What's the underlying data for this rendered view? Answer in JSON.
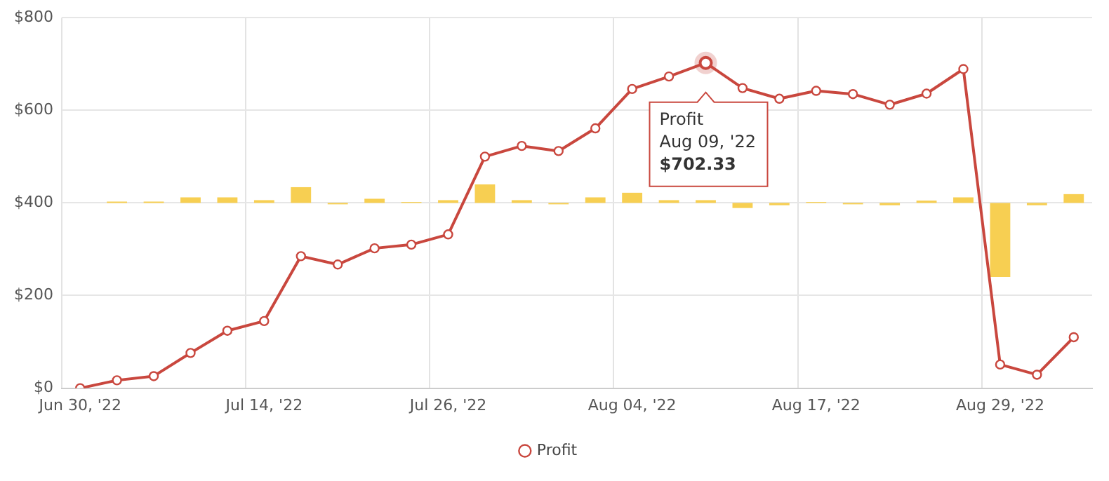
{
  "chart_data": {
    "type": "line",
    "categories": [
      "Jun 30, '22",
      null,
      null,
      null,
      null,
      "Jul 14, '22",
      null,
      null,
      null,
      null,
      "Jul 26, '22",
      null,
      null,
      null,
      null,
      "Aug 04, '22",
      null,
      null,
      null,
      null,
      "Aug 17, '22",
      null,
      null,
      null,
      null,
      "Aug 29, '22",
      null,
      null
    ],
    "series": [
      {
        "type": "bar",
        "color": "#f7cf52",
        "base": [
          null,
          400,
          400,
          400,
          400,
          400,
          400,
          400,
          400,
          400,
          400,
          400,
          400,
          400,
          400,
          400,
          400,
          400,
          400,
          400,
          400,
          400,
          400,
          400,
          400,
          400,
          400,
          400
        ],
        "values": [
          null,
          3,
          3,
          12,
          12,
          6,
          34,
          -3,
          9,
          2,
          6,
          40,
          6,
          -3,
          12,
          22,
          6,
          6,
          -11,
          -5,
          2,
          -3,
          -5,
          5,
          12,
          -160,
          -5,
          19
        ]
      },
      {
        "name": "Profit",
        "color": "#c9473e",
        "values": [
          0,
          17,
          26,
          76,
          124,
          145,
          285,
          267,
          302,
          310,
          332,
          500,
          523,
          512,
          561,
          646,
          673,
          702.33,
          648,
          625,
          642,
          635,
          612,
          636,
          689,
          51,
          29,
          110
        ]
      }
    ],
    "ylim": [
      0,
      800
    ],
    "yticks": [
      {
        "value": 0,
        "label": "$0"
      },
      {
        "value": 200,
        "label": "$200"
      },
      {
        "value": 400,
        "label": "$400"
      },
      {
        "value": 600,
        "label": "$600"
      },
      {
        "value": 800,
        "label": "$800"
      }
    ],
    "grid": true,
    "legend": "bottom",
    "marker": "circle",
    "line_style": "solid",
    "annotations": [
      {
        "text": "Profit\nAug 09, '22\n$702.33",
        "y": 702.33
      }
    ]
  }
}
